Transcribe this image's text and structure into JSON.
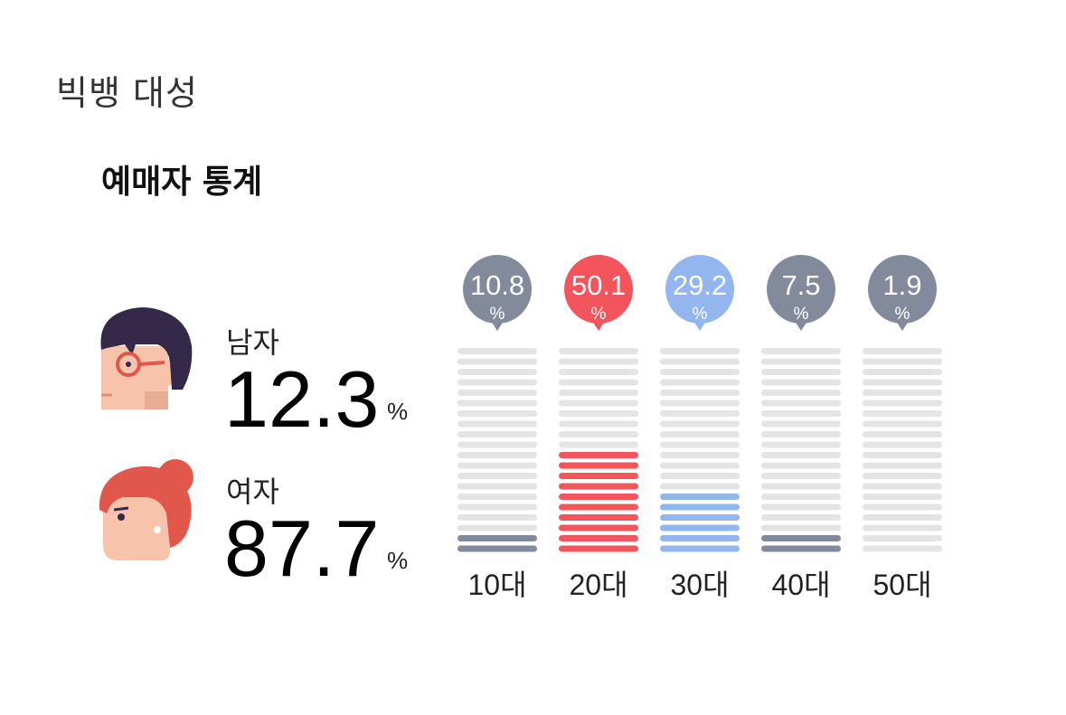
{
  "artist": "빅뱅 대성",
  "title": "예매자 통계",
  "gender": {
    "male": {
      "label": "남자",
      "value": "12.3",
      "unit": "%"
    },
    "female": {
      "label": "여자",
      "value": "87.7",
      "unit": "%"
    }
  },
  "colors": {
    "gray": "#838a9c",
    "red": "#f4545b",
    "blue": "#93b6ee",
    "track": "#e4e4e4",
    "hair_male": "#35294a",
    "hair_female": "#e2574c",
    "skin": "#f7c3ab"
  },
  "icons": {
    "male": "man-with-glasses-icon",
    "female": "woman-with-bun-icon"
  },
  "chart_data": {
    "type": "bar",
    "categories": [
      "10대",
      "20대",
      "30대",
      "40대",
      "50대"
    ],
    "values": [
      10.8,
      50.1,
      29.2,
      7.5,
      1.9
    ],
    "value_labels": [
      "10.8",
      "50.1",
      "29.2",
      "7.5",
      "1.9"
    ],
    "unit": "%",
    "segments_total": 20,
    "filled_segments": [
      2,
      10,
      6,
      2,
      0
    ],
    "bar_colors": [
      "#838a9c",
      "#f4545b",
      "#93b6ee",
      "#838a9c",
      "#838a9c"
    ],
    "ylim": [
      0,
      100
    ],
    "grid": false,
    "legend": "none"
  }
}
